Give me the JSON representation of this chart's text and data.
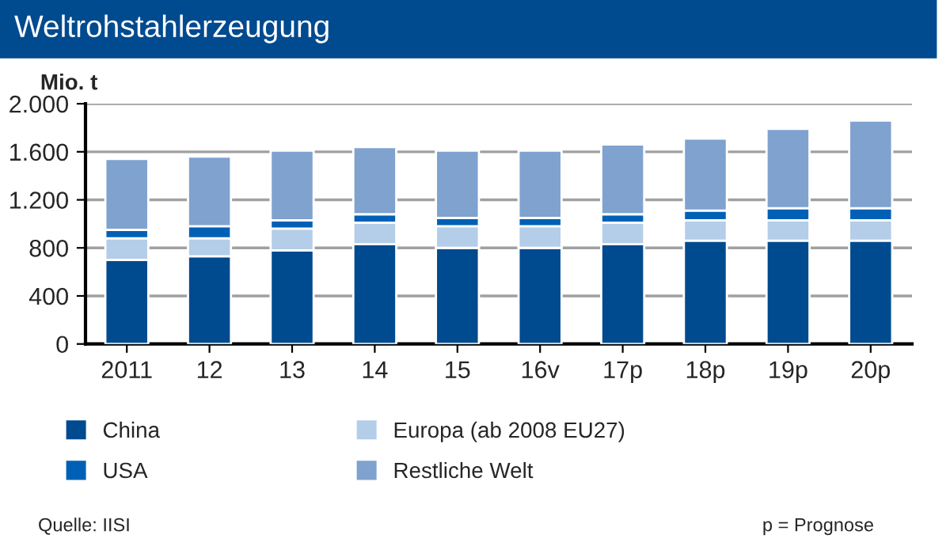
{
  "chart_data": {
    "type": "bar",
    "title": "Weltrohstahlerzeugung",
    "ylabel": "Mio. t",
    "categories": [
      "2011",
      "12",
      "13",
      "14",
      "15",
      "16v",
      "17p",
      "18p",
      "19p",
      "20p"
    ],
    "stacked": true,
    "series": [
      {
        "name": "China",
        "color": "#004a8f",
        "values": [
          700,
          730,
          780,
          830,
          800,
          800,
          830,
          860,
          860,
          860
        ]
      },
      {
        "name": "Europa (ab 2008 EU27)",
        "color": "#b4cde8",
        "values": [
          180,
          150,
          180,
          180,
          180,
          180,
          180,
          170,
          170,
          170
        ]
      },
      {
        "name": "USA",
        "color": "#0060b6",
        "values": [
          70,
          100,
          70,
          70,
          70,
          70,
          70,
          80,
          100,
          100
        ]
      },
      {
        "name": "Restliche Welt",
        "color": "#7fa2cf",
        "values": [
          590,
          580,
          580,
          560,
          560,
          560,
          580,
          600,
          660,
          730
        ]
      }
    ],
    "ylim": [
      0,
      2000
    ],
    "yticks": [
      0,
      400,
      800,
      {
        "value": 1200,
        "label": "1.200"
      },
      {
        "value": 1600,
        "label": "1.600"
      },
      {
        "value": 2000,
        "label": "2.000"
      }
    ],
    "grid": "y",
    "legend": "bottom",
    "annotations": [
      "Quelle: IISI",
      "p = Prognose"
    ]
  }
}
